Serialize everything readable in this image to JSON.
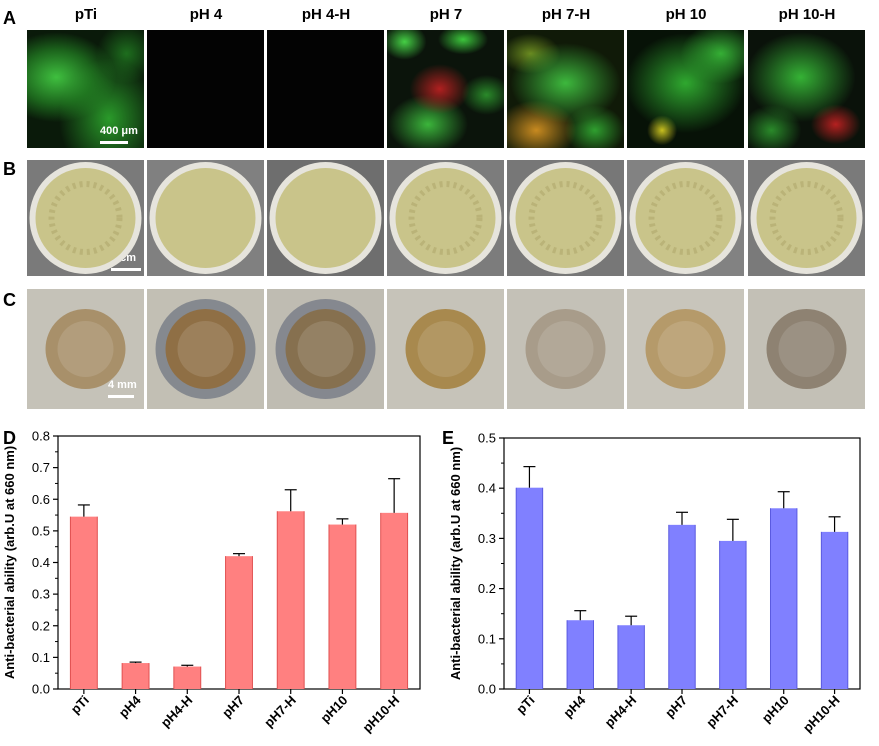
{
  "panels": {
    "A": "A",
    "B": "B",
    "C": "C",
    "D": "D",
    "E": "E"
  },
  "columns": [
    "pTi",
    "pH 4",
    "pH 4-H",
    "pH 7",
    "pH 7-H",
    "pH 10",
    "pH 10-H"
  ],
  "scale_bars": {
    "A": "400 μm",
    "B": "3 cm",
    "C": "4 mm"
  },
  "colors": {
    "live_stain": "#2fb52f",
    "dead_stain": "#c8221a",
    "agar": "#c9c48a",
    "bar_D": "#ff8080",
    "bar_E": "#8080ff"
  },
  "chart_data": [
    {
      "type": "bar",
      "categories": [
        "pTi",
        "pH4",
        "pH4-H",
        "pH7",
        "pH7-H",
        "pH10",
        "pH10-H"
      ],
      "values": [
        0.545,
        0.082,
        0.071,
        0.42,
        0.562,
        0.52,
        0.557
      ],
      "errors": [
        0.037,
        0.003,
        0.004,
        0.008,
        0.068,
        0.018,
        0.108
      ],
      "ylabel": "Anti-bacterial ability (arb.U at 660 nm)",
      "xlabel": "",
      "ylim": [
        0,
        0.8
      ],
      "yticks": [
        "0.0",
        "0.1",
        "0.2",
        "0.3",
        "0.4",
        "0.5",
        "0.6",
        "0.7",
        "0.8"
      ],
      "color": "#ff8080"
    },
    {
      "type": "bar",
      "categories": [
        "pTi",
        "pH4",
        "pH4-H",
        "pH7",
        "pH7-H",
        "pH10",
        "pH10-H"
      ],
      "values": [
        0.401,
        0.137,
        0.127,
        0.327,
        0.295,
        0.36,
        0.313
      ],
      "errors": [
        0.042,
        0.019,
        0.018,
        0.025,
        0.043,
        0.033,
        0.03
      ],
      "ylabel": "Anti-bacterial ability (arb.U at 660 nm)",
      "xlabel": "",
      "ylim": [
        0,
        0.5
      ],
      "yticks": [
        "0.0",
        "0.1",
        "0.2",
        "0.3",
        "0.4",
        "0.5"
      ],
      "color": "#8080ff"
    }
  ]
}
